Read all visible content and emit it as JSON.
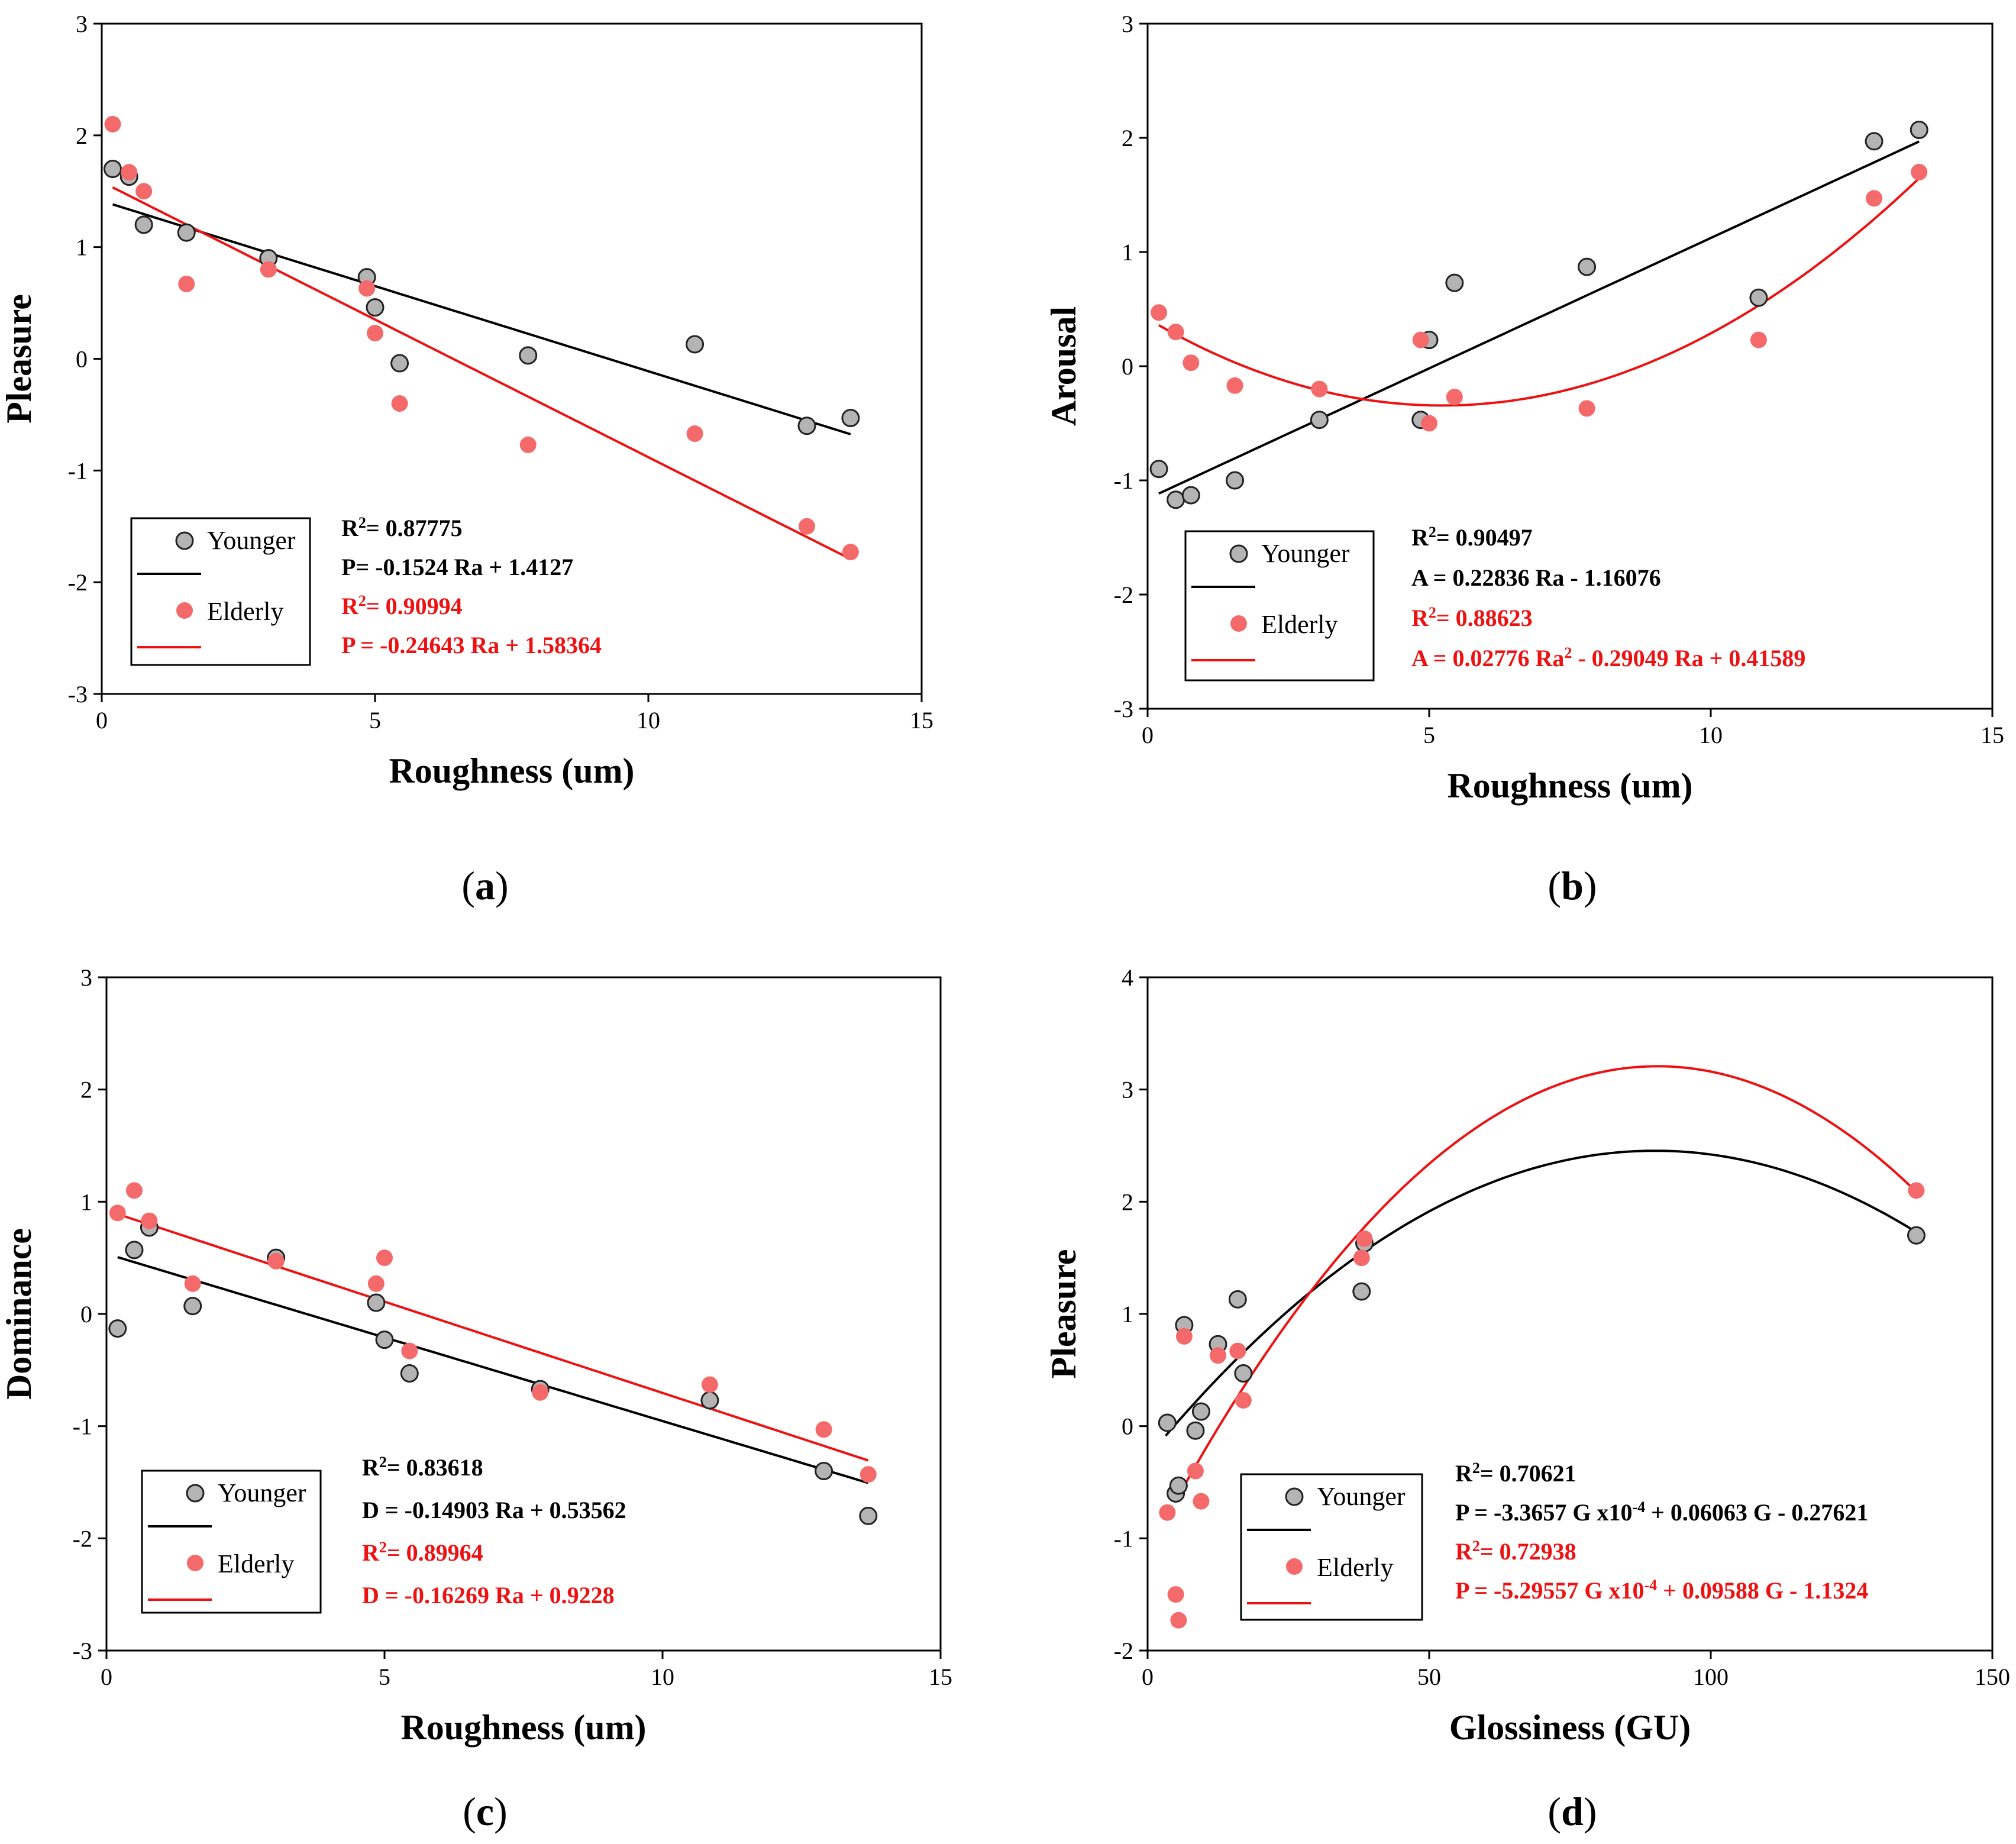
{
  "colors": {
    "younger_marker": "#b4b4b4",
    "elderly_marker": "#f46a6a",
    "younger_line": "#000000",
    "elderly_line": "#ee1111",
    "younger_text": "#000000",
    "elderly_text": "#ee1111"
  },
  "chart_data": [
    {
      "panel": "a",
      "label_parts": [
        "(",
        "a",
        ")"
      ],
      "type": "scatter",
      "xlabel": "Roughness (um)",
      "ylabel": "Pleasure",
      "xlim": [
        0,
        15
      ],
      "ylim": [
        -3,
        3
      ],
      "xticks": [
        0,
        5,
        10,
        15
      ],
      "yticks": [
        -3,
        -2,
        -1,
        0,
        1,
        2,
        3
      ],
      "legend": {
        "younger": "Younger",
        "elderly": "Elderly"
      },
      "stats": [
        {
          "group": "younger",
          "parts": [
            [
              "R",
              ""
            ],
            [
              "2",
              "sup"
            ],
            [
              "= 0.87775",
              ""
            ]
          ]
        },
        {
          "group": "younger",
          "parts": [
            [
              "P= -0.1524 Ra + 1.4127",
              ""
            ]
          ]
        },
        {
          "group": "elderly",
          "parts": [
            [
              "R",
              ""
            ],
            [
              "2",
              "sup"
            ],
            [
              "= 0.90994",
              ""
            ]
          ]
        },
        {
          "group": "elderly",
          "parts": [
            [
              "P = -0.24643 Ra + 1.58364",
              ""
            ]
          ]
        }
      ],
      "series": [
        {
          "name": "Younger",
          "fit": {
            "kind": "poly",
            "coef": [
              1.4127,
              -0.1524
            ],
            "range": [
              0.2,
              13.7
            ]
          },
          "points": [
            [
              0.2,
              1.7
            ],
            [
              0.5,
              1.63
            ],
            [
              0.77,
              1.2
            ],
            [
              1.55,
              1.13
            ],
            [
              3.05,
              0.9
            ],
            [
              4.85,
              0.73
            ],
            [
              5.0,
              0.46
            ],
            [
              5.45,
              -0.04
            ],
            [
              7.8,
              0.03
            ],
            [
              10.85,
              0.13
            ],
            [
              12.9,
              -0.6
            ],
            [
              13.7,
              -0.53
            ]
          ]
        },
        {
          "name": "Elderly",
          "fit": {
            "kind": "poly",
            "coef": [
              1.58364,
              -0.24643
            ],
            "range": [
              0.2,
              13.7
            ]
          },
          "points": [
            [
              0.2,
              2.1
            ],
            [
              0.5,
              1.67
            ],
            [
              0.77,
              1.5
            ],
            [
              1.55,
              0.67
            ],
            [
              3.05,
              0.8
            ],
            [
              4.85,
              0.63
            ],
            [
              5.0,
              0.23
            ],
            [
              5.45,
              -0.4
            ],
            [
              7.8,
              -0.77
            ],
            [
              10.85,
              -0.67
            ],
            [
              12.9,
              -1.5
            ],
            [
              13.7,
              -1.73
            ]
          ]
        }
      ]
    },
    {
      "panel": "b",
      "label_parts": [
        "(",
        "b",
        ")"
      ],
      "type": "scatter",
      "xlabel": "Roughness  (um)",
      "ylabel": "Arousal",
      "xlim": [
        0,
        15
      ],
      "ylim": [
        -3,
        3
      ],
      "xticks": [
        0,
        5,
        10,
        15
      ],
      "yticks": [
        -3,
        -2,
        -1,
        0,
        1,
        2,
        3
      ],
      "legend": {
        "younger": "Younger",
        "elderly": "Elderly"
      },
      "stats": [
        {
          "group": "younger",
          "parts": [
            [
              "R",
              ""
            ],
            [
              "2",
              "sup"
            ],
            [
              "= 0.90497",
              ""
            ]
          ]
        },
        {
          "group": "younger",
          "parts": [
            [
              "A = 0.22836 Ra - 1.16076",
              ""
            ]
          ]
        },
        {
          "group": "elderly",
          "parts": [
            [
              "R",
              ""
            ],
            [
              "2",
              "sup"
            ],
            [
              "= 0.88623",
              ""
            ]
          ]
        },
        {
          "group": "elderly",
          "parts": [
            [
              "A = 0.02776 Ra",
              ""
            ],
            [
              "2",
              "sup"
            ],
            [
              " - 0.29049 Ra + 0.41589",
              ""
            ]
          ]
        }
      ],
      "series": [
        {
          "name": "Younger",
          "fit": {
            "kind": "poly",
            "coef": [
              -1.16076,
              0.22836
            ],
            "range": [
              0.2,
              13.7
            ]
          },
          "points": [
            [
              0.2,
              -0.9
            ],
            [
              0.5,
              -1.17
            ],
            [
              0.77,
              -1.13
            ],
            [
              1.55,
              -1.0
            ],
            [
              3.05,
              -0.47
            ],
            [
              4.85,
              -0.47
            ],
            [
              5.0,
              0.23
            ],
            [
              5.45,
              0.73
            ],
            [
              7.8,
              0.87
            ],
            [
              10.85,
              0.6
            ],
            [
              12.9,
              1.97
            ],
            [
              13.7,
              2.07
            ]
          ]
        },
        {
          "name": "Elderly",
          "fit": {
            "kind": "poly",
            "coef": [
              0.41589,
              -0.29049,
              0.02776
            ],
            "range": [
              0.2,
              13.7
            ]
          },
          "points": [
            [
              0.2,
              0.47
            ],
            [
              0.5,
              0.3
            ],
            [
              0.77,
              0.03
            ],
            [
              1.55,
              -0.17
            ],
            [
              3.05,
              -0.2
            ],
            [
              4.85,
              0.23
            ],
            [
              5.0,
              -0.5
            ],
            [
              5.45,
              -0.27
            ],
            [
              7.8,
              -0.37
            ],
            [
              10.85,
              0.23
            ],
            [
              12.9,
              1.47
            ],
            [
              13.7,
              1.7
            ]
          ]
        }
      ]
    },
    {
      "panel": "c",
      "label_parts": [
        "(",
        "c",
        ")"
      ],
      "type": "scatter",
      "xlabel": "Roughness (um)",
      "ylabel": "Dominance",
      "xlim": [
        0,
        15
      ],
      "ylim": [
        -3,
        3
      ],
      "xticks": [
        0,
        5,
        10,
        15
      ],
      "yticks": [
        -3,
        -2,
        -1,
        0,
        1,
        2,
        3
      ],
      "legend": {
        "younger": "Younger",
        "elderly": "Elderly"
      },
      "stats": [
        {
          "group": "younger",
          "parts": [
            [
              "R",
              ""
            ],
            [
              "2",
              "sup"
            ],
            [
              "= 0.83618",
              ""
            ]
          ]
        },
        {
          "group": "younger",
          "parts": [
            [
              "D = -0.14903 Ra + 0.53562",
              ""
            ]
          ]
        },
        {
          "group": "elderly",
          "parts": [
            [
              "R",
              ""
            ],
            [
              "2",
              "sup"
            ],
            [
              "= 0.89964",
              ""
            ]
          ]
        },
        {
          "group": "elderly",
          "parts": [
            [
              "D = -0.16269 Ra + 0.9228",
              ""
            ]
          ]
        }
      ],
      "series": [
        {
          "name": "Younger",
          "fit": {
            "kind": "poly",
            "coef": [
              0.53562,
              -0.14903
            ],
            "range": [
              0.2,
              13.7
            ]
          },
          "points": [
            [
              0.2,
              -0.13
            ],
            [
              0.5,
              0.57
            ],
            [
              0.77,
              0.77
            ],
            [
              1.55,
              0.07
            ],
            [
              3.05,
              0.5
            ],
            [
              4.85,
              0.1
            ],
            [
              5.0,
              -0.23
            ],
            [
              5.45,
              -0.53
            ],
            [
              7.8,
              -0.67
            ],
            [
              10.85,
              -0.77
            ],
            [
              12.9,
              -1.4
            ],
            [
              13.7,
              -1.8
            ]
          ]
        },
        {
          "name": "Elderly",
          "fit": {
            "kind": "poly",
            "coef": [
              0.9228,
              -0.16269
            ],
            "range": [
              0.2,
              13.7
            ]
          },
          "points": [
            [
              0.2,
              0.9
            ],
            [
              0.5,
              1.1
            ],
            [
              0.77,
              0.83
            ],
            [
              1.55,
              0.27
            ],
            [
              3.05,
              0.47
            ],
            [
              4.85,
              0.27
            ],
            [
              5.0,
              0.5
            ],
            [
              5.45,
              -0.33
            ],
            [
              7.8,
              -0.7
            ],
            [
              10.85,
              -0.63
            ],
            [
              12.9,
              -1.03
            ],
            [
              13.7,
              -1.43
            ]
          ]
        }
      ]
    },
    {
      "panel": "d",
      "label_parts": [
        "(",
        "d",
        ")"
      ],
      "type": "scatter",
      "xlabel": "Glossiness (GU)",
      "ylabel": "Pleasure",
      "xlim": [
        0,
        150
      ],
      "ylim": [
        -2,
        4
      ],
      "xticks": [
        0,
        50,
        100,
        150
      ],
      "yticks": [
        -2,
        -1,
        0,
        1,
        2,
        3,
        4
      ],
      "legend": {
        "younger": "Younger",
        "elderly": "Elderly"
      },
      "stats": [
        {
          "group": "younger",
          "parts": [
            [
              "R",
              ""
            ],
            [
              "2",
              "sup"
            ],
            [
              "= 0.70621",
              ""
            ]
          ]
        },
        {
          "group": "younger",
          "parts": [
            [
              "P = -3.3657 G x10",
              ""
            ],
            [
              "-4",
              "sup"
            ],
            [
              " + 0.06063 G - 0.27621",
              ""
            ]
          ]
        },
        {
          "group": "elderly",
          "parts": [
            [
              "R",
              ""
            ],
            [
              "2",
              "sup"
            ],
            [
              "= 0.72938",
              ""
            ]
          ]
        },
        {
          "group": "elderly",
          "parts": [
            [
              "P = -5.29557 G x10",
              ""
            ],
            [
              "-4",
              "sup"
            ],
            [
              " + 0.09588 G - 1.1324",
              ""
            ]
          ]
        }
      ],
      "series": [
        {
          "name": "Younger",
          "fit": {
            "kind": "poly",
            "coef": [
              -0.27621,
              0.06063,
              -0.00033657
            ],
            "range": [
              3.2,
              136.5
            ]
          },
          "points": [
            [
              3.5,
              0.03
            ],
            [
              5.0,
              -0.6
            ],
            [
              5.5,
              -0.53
            ],
            [
              6.5,
              0.9
            ],
            [
              8.5,
              -0.04
            ],
            [
              9.5,
              0.13
            ],
            [
              12.5,
              0.73
            ],
            [
              16.0,
              1.13
            ],
            [
              17.0,
              0.47
            ],
            [
              38.0,
              1.2
            ],
            [
              38.5,
              1.63
            ],
            [
              136.5,
              1.7
            ]
          ]
        },
        {
          "name": "Elderly",
          "fit": {
            "kind": "poly",
            "coef": [
              -1.1324,
              0.09588,
              -0.000529557
            ],
            "range": [
              6.0,
              136.5
            ]
          },
          "points": [
            [
              3.5,
              -0.77
            ],
            [
              5.0,
              -1.5
            ],
            [
              5.5,
              -1.73
            ],
            [
              6.5,
              0.8
            ],
            [
              8.5,
              -0.4
            ],
            [
              9.5,
              -0.67
            ],
            [
              12.5,
              0.63
            ],
            [
              16.0,
              0.67
            ],
            [
              17.0,
              0.23
            ],
            [
              38.0,
              1.5
            ],
            [
              38.5,
              1.67
            ],
            [
              136.5,
              2.1
            ]
          ]
        }
      ]
    }
  ]
}
